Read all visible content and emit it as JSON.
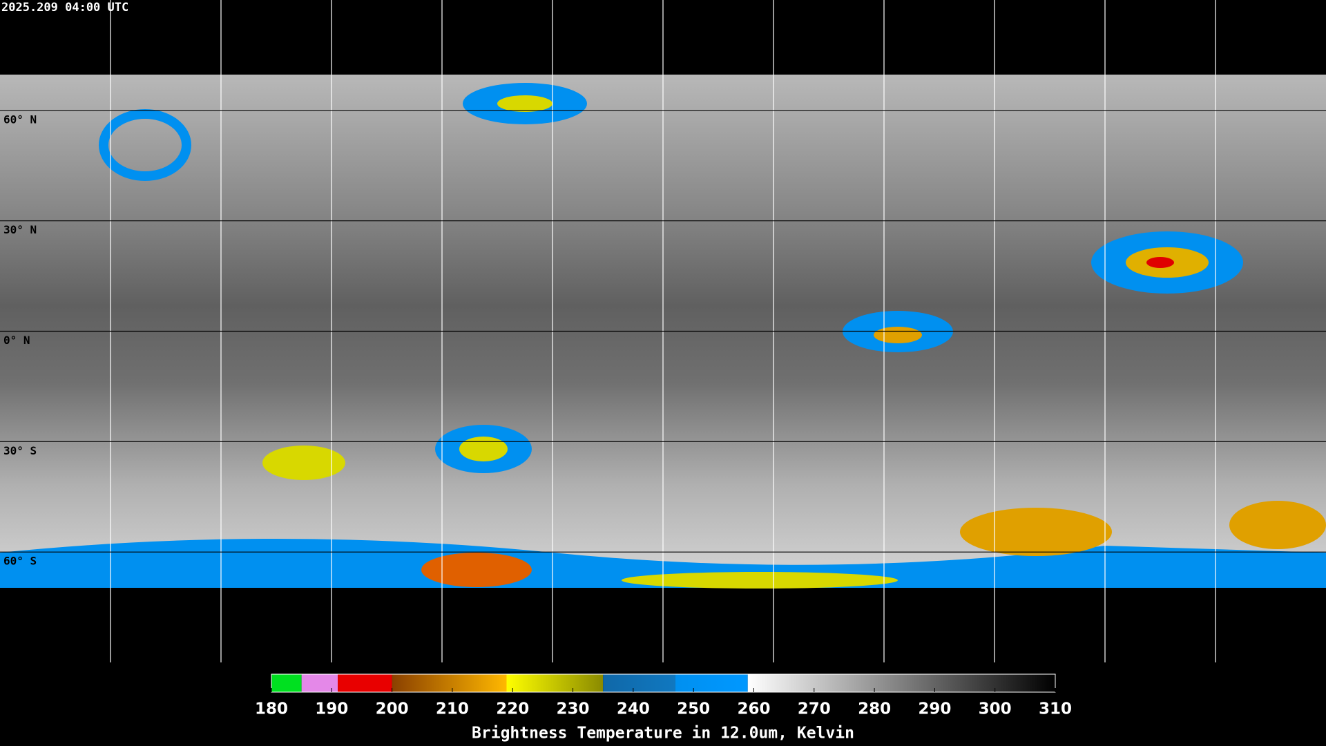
{
  "header": {
    "timestamp": "2025.209 04:00 UTC"
  },
  "latitudes": [
    {
      "value": 60,
      "label": "60° N"
    },
    {
      "value": 30,
      "label": "30° N"
    },
    {
      "value": 0,
      "label": "0° N"
    },
    {
      "value": -30,
      "label": "30° S"
    },
    {
      "value": -60,
      "label": "60° S"
    }
  ],
  "colorbar": {
    "range": [
      180,
      310
    ],
    "ticks": [
      180,
      190,
      200,
      210,
      220,
      230,
      240,
      250,
      260,
      270,
      280,
      290,
      300,
      310
    ],
    "label": "Brightness Temperature in 12.0um, Kelvin",
    "segments": [
      {
        "from": 180,
        "to": 185,
        "color_start": "#00e020",
        "color_end": "#00e020"
      },
      {
        "from": 185,
        "to": 191,
        "color_start": "#e488e8",
        "color_end": "#e488e8"
      },
      {
        "from": 191,
        "to": 200,
        "color_start": "#e80000",
        "color_end": "#e80000"
      },
      {
        "from": 200,
        "to": 219,
        "color_start": "#8a4000",
        "color_end": "#ffb800"
      },
      {
        "from": 219,
        "to": 235,
        "color_start": "#ffff00",
        "color_end": "#8a8a00"
      },
      {
        "from": 235,
        "to": 247,
        "color_start": "#1068a8",
        "color_end": "#1078c0"
      },
      {
        "from": 247,
        "to": 259,
        "color_start": "#0090f0",
        "color_end": "#0098ff"
      },
      {
        "from": 259,
        "to": 310,
        "color_start": "#ffffff",
        "color_end": "#000000"
      }
    ]
  }
}
